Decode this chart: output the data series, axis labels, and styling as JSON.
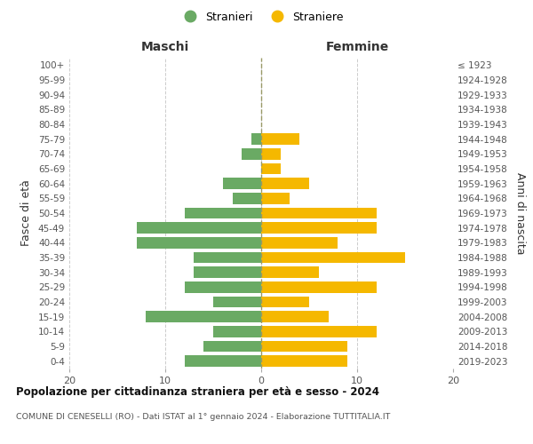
{
  "age_groups": [
    "0-4",
    "5-9",
    "10-14",
    "15-19",
    "20-24",
    "25-29",
    "30-34",
    "35-39",
    "40-44",
    "45-49",
    "50-54",
    "55-59",
    "60-64",
    "65-69",
    "70-74",
    "75-79",
    "80-84",
    "85-89",
    "90-94",
    "95-99",
    "100+"
  ],
  "birth_years": [
    "2019-2023",
    "2014-2018",
    "2009-2013",
    "2004-2008",
    "1999-2003",
    "1994-1998",
    "1989-1993",
    "1984-1988",
    "1979-1983",
    "1974-1978",
    "1969-1973",
    "1964-1968",
    "1959-1963",
    "1954-1958",
    "1949-1953",
    "1944-1948",
    "1939-1943",
    "1934-1938",
    "1929-1933",
    "1924-1928",
    "≤ 1923"
  ],
  "maschi": [
    8,
    6,
    5,
    12,
    5,
    8,
    7,
    7,
    13,
    13,
    8,
    3,
    4,
    0,
    2,
    1,
    0,
    0,
    0,
    0,
    0
  ],
  "femmine": [
    9,
    9,
    12,
    7,
    5,
    12,
    6,
    15,
    8,
    12,
    12,
    3,
    5,
    2,
    2,
    4,
    0,
    0,
    0,
    0,
    0
  ],
  "male_color": "#6aaa64",
  "female_color": "#f5b800",
  "title": "Popolazione per cittadinanza straniera per età e sesso - 2024",
  "subtitle": "COMUNE DI CENESELLI (RO) - Dati ISTAT al 1° gennaio 2024 - Elaborazione TUTTITALIA.IT",
  "xlabel_left": "Maschi",
  "xlabel_right": "Femmine",
  "ylabel_left": "Fasce di età",
  "ylabel_right": "Anni di nascita",
  "legend_male": "Stranieri",
  "legend_female": "Straniere",
  "xlim": 20,
  "background_color": "#ffffff",
  "grid_color": "#cccccc",
  "bar_height": 0.75
}
